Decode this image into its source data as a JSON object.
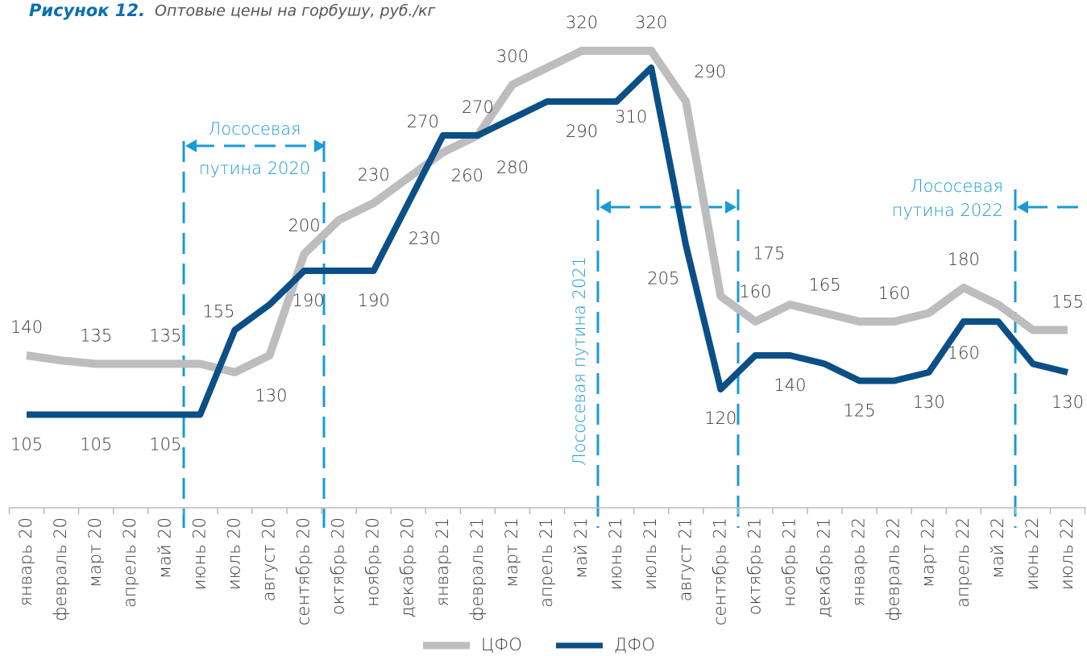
{
  "chart_data": {
    "type": "line",
    "figure_label": "Рисунок 12.",
    "title": "Оптовые цены на горбушу, руб./кг",
    "categories": [
      "январь 20",
      "февраль 20",
      "март 20",
      "апрель 20",
      "май 20",
      "июнь 20",
      "июль 20",
      "август 20",
      "сентябрь 20",
      "октябрь 20",
      "ноябрь 20",
      "декабрь 20",
      "январь 21",
      "февраль 21",
      "март 21",
      "апрель 21",
      "май 21",
      "июнь 21",
      "июль 21",
      "август 21",
      "сентябрь 21",
      "октябрь 21",
      "ноябрь 21",
      "декабрь 21",
      "январь 22",
      "февраль 22",
      "март 22",
      "апрель 22",
      "май 22",
      "июнь 22",
      "июль 22"
    ],
    "series": [
      {
        "name": "ЦФО",
        "color": "#bdbdbf",
        "values": [
          140,
          137,
          135,
          135,
          135,
          135,
          130,
          140,
          200,
          220,
          230,
          245,
          260,
          270,
          300,
          310,
          320,
          320,
          320,
          290,
          175,
          160,
          170,
          165,
          160,
          160,
          165,
          180,
          170,
          155,
          155
        ],
        "value_labels": [
          140,
          null,
          135,
          null,
          135,
          null,
          130,
          null,
          200,
          null,
          230,
          null,
          260,
          270,
          300,
          null,
          320,
          null,
          320,
          290,
          175,
          160,
          null,
          165,
          null,
          160,
          null,
          180,
          null,
          null,
          155
        ]
      },
      {
        "name": "ДФО",
        "color": "#0b4f87",
        "values": [
          105,
          105,
          105,
          105,
          105,
          105,
          155,
          170,
          190,
          190,
          190,
          230,
          270,
          270,
          280,
          290,
          290,
          290,
          310,
          205,
          120,
          140,
          140,
          135,
          125,
          125,
          130,
          160,
          160,
          135,
          130
        ],
        "value_labels": [
          105,
          null,
          105,
          null,
          105,
          null,
          155,
          null,
          190,
          null,
          190,
          230,
          270,
          null,
          280,
          null,
          290,
          null,
          310,
          205,
          120,
          null,
          140,
          null,
          125,
          null,
          130,
          160,
          null,
          null,
          130
        ]
      }
    ],
    "ylim": [
      50,
      350
    ],
    "annotations": [
      [
        "Лососевая",
        "путина 2020"
      ],
      [
        "Лососевая путина 2021"
      ],
      [
        "Лососевая",
        "путина 2022"
      ]
    ]
  }
}
